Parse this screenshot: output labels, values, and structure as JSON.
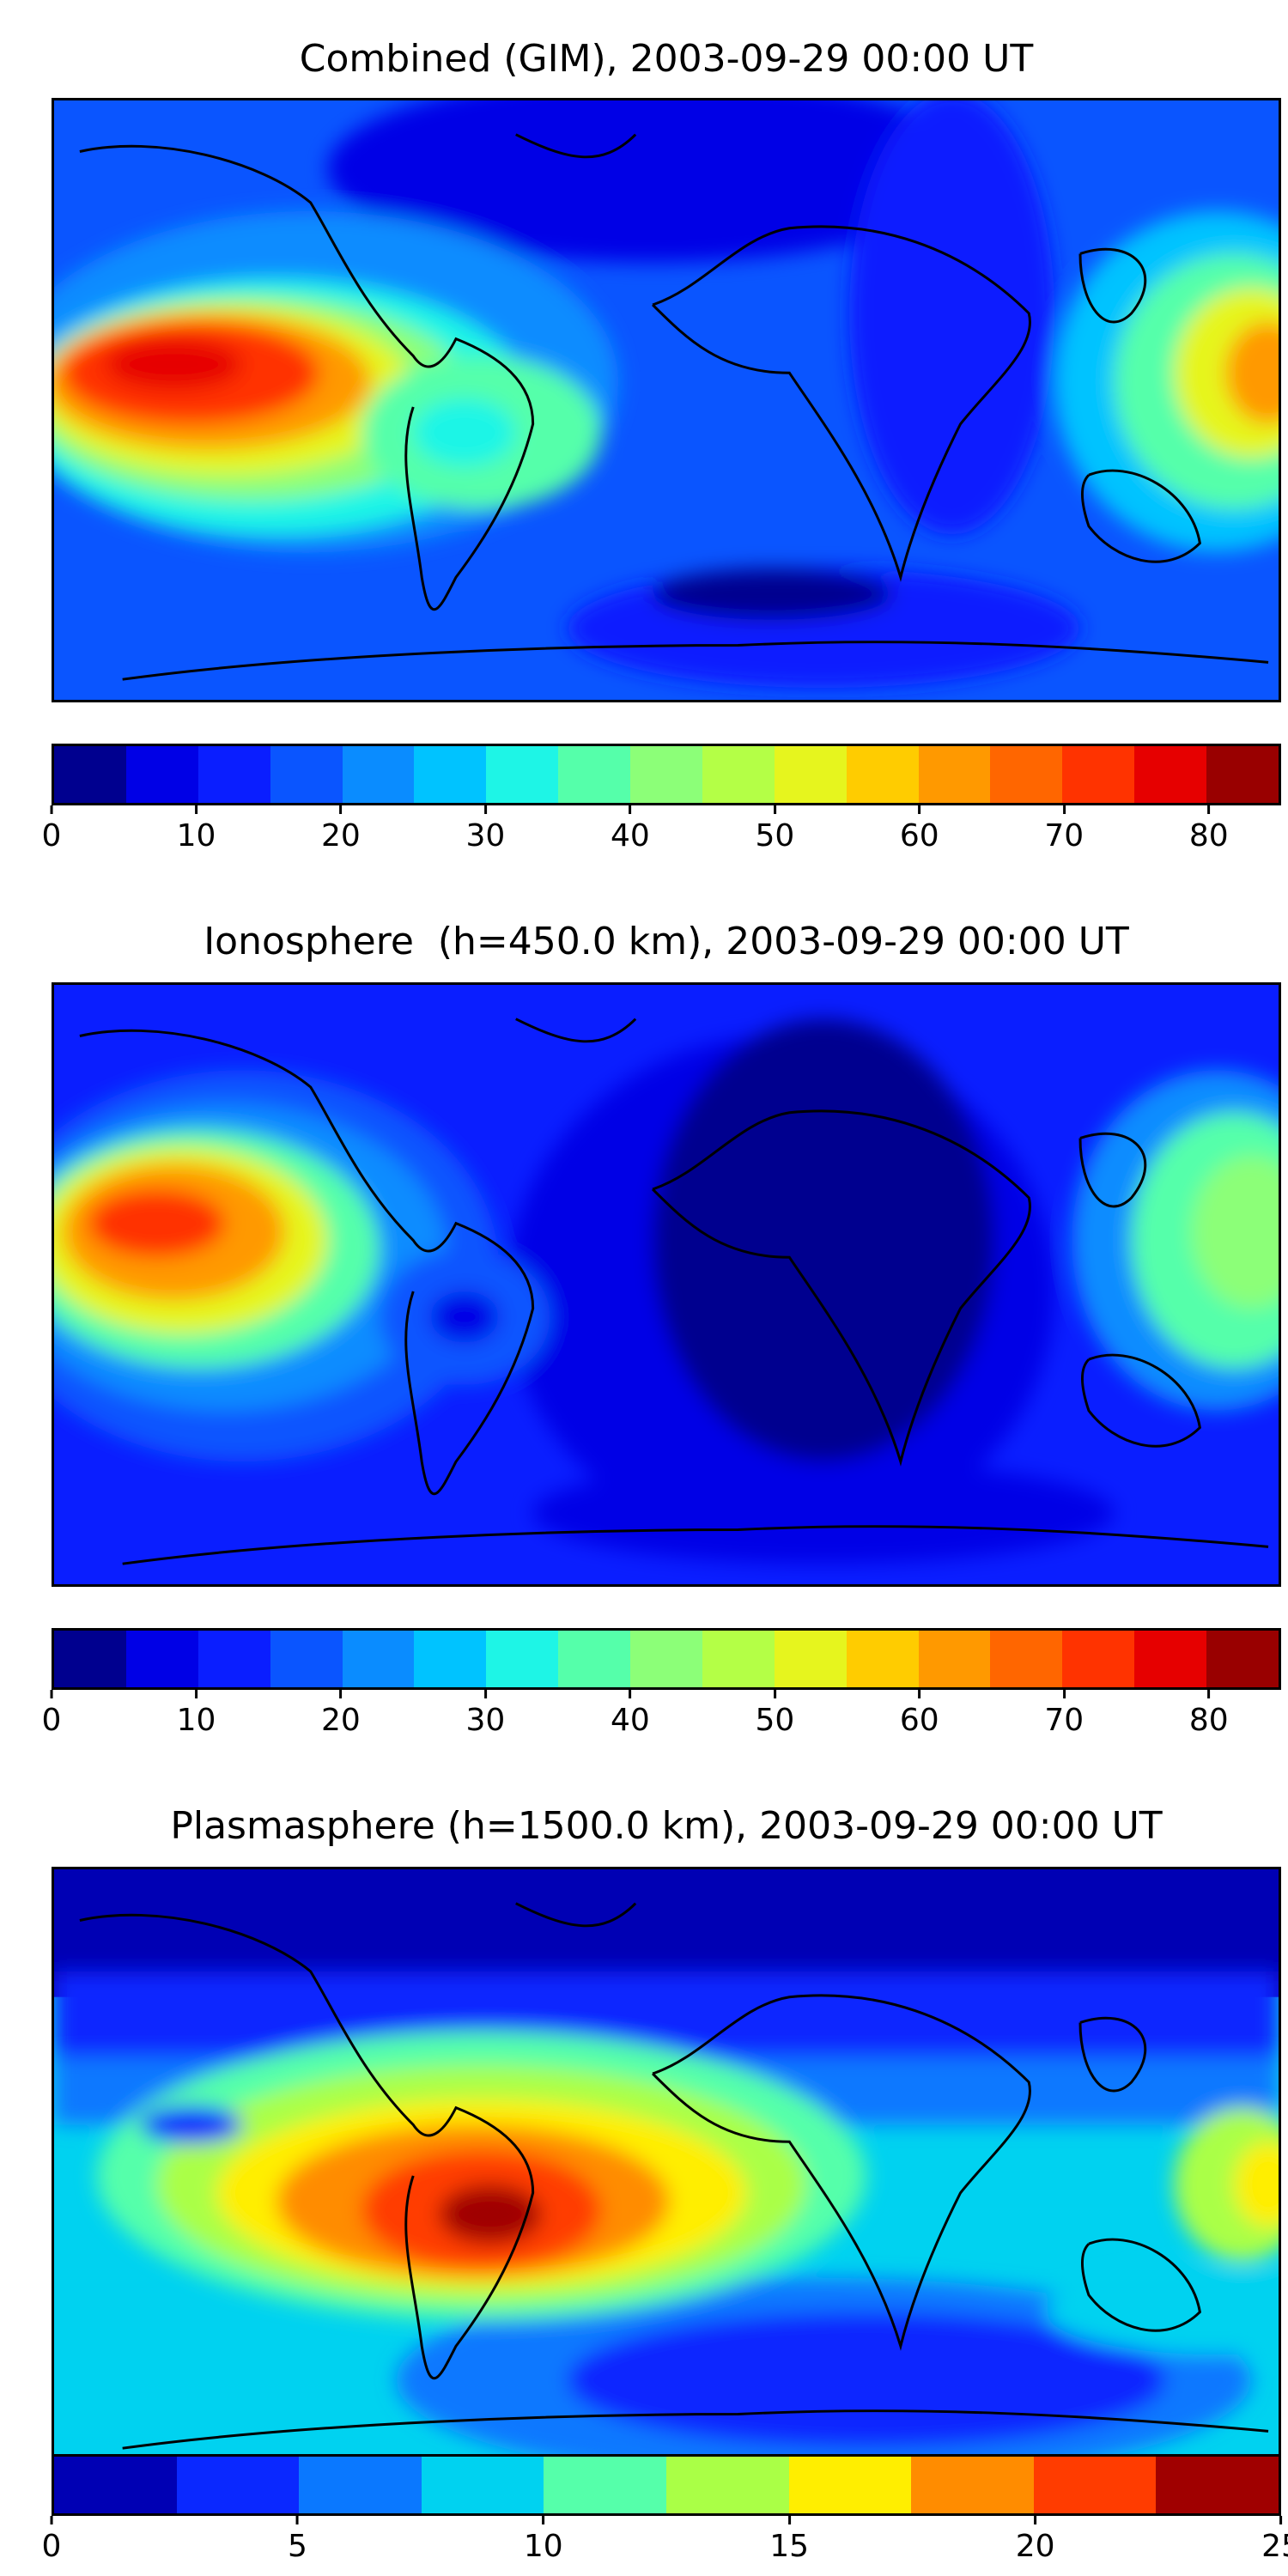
{
  "panels": [
    {
      "title": "Combined (GIM), 2003-09-29 00:00 UT",
      "colorbar": {
        "colors": [
          "#00008f",
          "#0000e6",
          "#0a1eff",
          "#0a55ff",
          "#0a8cff",
          "#00c3ff",
          "#1ef5e6",
          "#55ffaa",
          "#8cff78",
          "#b4ff46",
          "#e6f51e",
          "#ffcc00",
          "#ff9900",
          "#ff6600",
          "#ff3300",
          "#e60000",
          "#990000"
        ],
        "ticks": [
          "0",
          "10",
          "20",
          "30",
          "40",
          "50",
          "60",
          "70",
          "80"
        ],
        "tick_values": [
          0,
          10,
          20,
          30,
          40,
          50,
          60,
          70,
          80
        ],
        "range": [
          0,
          85
        ]
      }
    },
    {
      "title": "Ionosphere  (h=450.0 km), 2003-09-29 00:00 UT",
      "colorbar": {
        "colors": [
          "#00008f",
          "#0000e6",
          "#0a1eff",
          "#0a55ff",
          "#0a8cff",
          "#00c3ff",
          "#1ef5e6",
          "#55ffaa",
          "#8cff78",
          "#b4ff46",
          "#e6f51e",
          "#ffcc00",
          "#ff9900",
          "#ff6600",
          "#ff3300",
          "#e60000",
          "#990000"
        ],
        "ticks": [
          "0",
          "10",
          "20",
          "30",
          "40",
          "50",
          "60",
          "70",
          "80"
        ],
        "tick_values": [
          0,
          10,
          20,
          30,
          40,
          50,
          60,
          70,
          80
        ],
        "range": [
          0,
          85
        ]
      }
    },
    {
      "title": "Plasmasphere (h=1500.0 km), 2003-09-29 00:00 UT",
      "colorbar": {
        "colors": [
          "#0000b4",
          "#0a28ff",
          "#0a78ff",
          "#00d2f0",
          "#55ffaa",
          "#aaff46",
          "#ffee00",
          "#ff8c00",
          "#ff3c00",
          "#a00000"
        ],
        "ticks": [
          "0",
          "5",
          "10",
          "15",
          "20",
          "25"
        ],
        "tick_values": [
          0,
          5,
          10,
          15,
          20,
          25
        ],
        "range": [
          0,
          25
        ]
      }
    }
  ]
}
